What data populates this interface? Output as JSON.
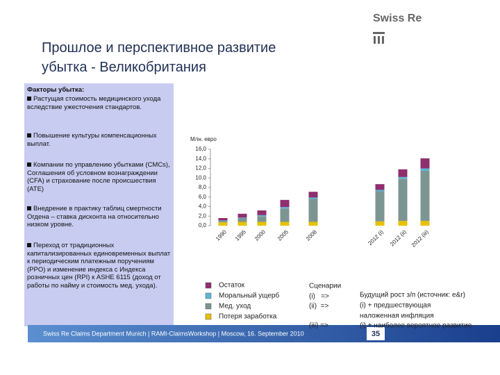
{
  "logo": "Swiss Re",
  "title_lines": [
    "Прошлое и перспективное развитие",
    "убытка - Великобритания"
  ],
  "factors": {
    "heading": "Факторы убытка:",
    "bullets": [
      "Растущая стоимость медицинского ухода вследствие ужесточения стандартов.",
      "Повышение культуры компенсационных выплат.",
      "Компании по управлению убытками (CMCs), Соглашения об условном вознаграждении (CFA) и страхование после происшествия (ATE)",
      "Внедрение в практику таблиц смертности Огдена – ставка дисконта на относительно низком уровне.",
      "Переход от традиционных капитализированных единовременных выплат к периодическим платежным поручениям (PPO) и изменение индекса с Индекса розничных цен (RPI) к ASHE 6115 (доход от работы по найму и стоимость мед. ухода)."
    ]
  },
  "chart_data": {
    "type": "stacked-bar",
    "ylabel": "Млн. евро",
    "categories": [
      "1990",
      "1995",
      "2000",
      "2005",
      "2008",
      "2012 (i)",
      "2012 (ii)",
      "2012 (iii)"
    ],
    "series": [
      {
        "name": "Потеря заработка",
        "color": "#e6c100",
        "values": [
          0.7,
          0.8,
          0.8,
          0.8,
          0.8,
          0.9,
          1.0,
          1.0
        ]
      },
      {
        "name": "Мед. уход",
        "color": "#7d9592",
        "values": [
          0.3,
          0.8,
          1.2,
          2.8,
          4.8,
          6.3,
          8.8,
          10.5
        ]
      },
      {
        "name": "Моральный ущерб",
        "color": "#5cb6d6",
        "values": [
          0.1,
          0.1,
          0.2,
          0.3,
          0.3,
          0.3,
          0.4,
          0.5
        ]
      },
      {
        "name": "Остаток",
        "color": "#8e2f6e",
        "values": [
          0.5,
          0.8,
          1.0,
          1.5,
          1.2,
          1.2,
          1.6,
          2.1
        ]
      }
    ],
    "ylim": [
      0,
      16
    ],
    "yticks": [
      {
        "value": 0,
        "label": "0,0"
      },
      {
        "value": 2,
        "label": "2,0"
      },
      {
        "value": 4,
        "label": "4,0"
      },
      {
        "value": 6,
        "label": "6,0"
      },
      {
        "value": 8,
        "label": "8,0"
      },
      {
        "value": 10,
        "label": "10,0"
      },
      {
        "value": 12,
        "label": "12,0"
      },
      {
        "value": 14,
        "label": "14,0"
      },
      {
        "value": 16,
        "label": "16,0"
      }
    ],
    "grid": false
  },
  "scenarios": {
    "heading": "Сценарии",
    "left": [
      "(i)   =>",
      "(ii)  =>",
      "(iii) =>"
    ],
    "right": [
      "Будущий рост з/п (источник: e&r)",
      "(i) + предшествующая",
      "наложенная инфляция",
      "(i) + наиболее вероятное развитие"
    ]
  },
  "footer": "Swiss Re Claims Department Munich | RAMI-ClaimsWorkshop | Moscow, 16. September 2010",
  "page_number": "35"
}
